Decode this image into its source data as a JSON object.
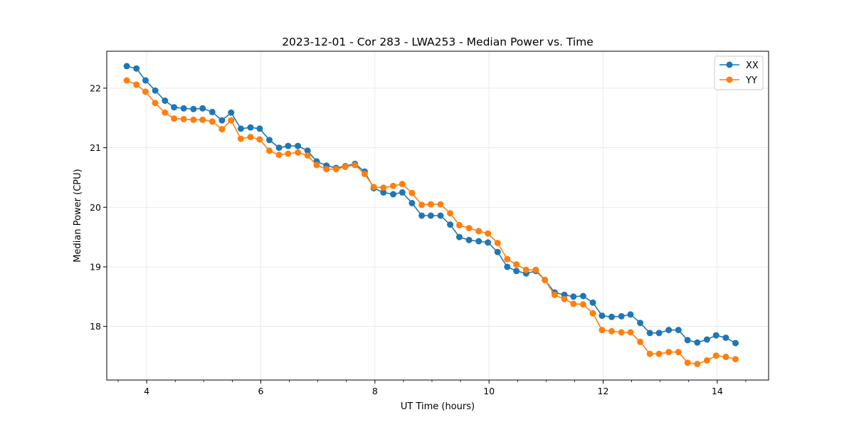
{
  "chart_data": {
    "type": "line",
    "title": "2023-12-01 - Cor 283 - LWA253 - Median Power vs. Time",
    "xlabel": "UT Time (hours)",
    "ylabel": "Median Power (CPU)",
    "xlim": [
      3.3,
      14.9
    ],
    "ylim": [
      17.1,
      22.62
    ],
    "xticks": [
      4,
      6,
      8,
      10,
      12,
      14
    ],
    "xticks_minor": [
      3.5,
      4.5,
      5.0,
      5.5,
      6.5,
      7.0,
      7.5,
      8.5,
      9.0,
      9.5,
      10.5,
      11.0,
      11.5,
      12.5,
      13.0,
      13.5,
      14.5
    ],
    "yticks": [
      18,
      19,
      20,
      21,
      22
    ],
    "grid": true,
    "legend_position": "top-right",
    "x": [
      3.65,
      3.82,
      3.98,
      4.15,
      4.32,
      4.48,
      4.65,
      4.82,
      4.98,
      5.15,
      5.32,
      5.48,
      5.65,
      5.82,
      5.98,
      6.15,
      6.32,
      6.48,
      6.65,
      6.82,
      6.98,
      7.15,
      7.32,
      7.48,
      7.65,
      7.82,
      7.98,
      8.15,
      8.32,
      8.48,
      8.65,
      8.82,
      8.98,
      9.15,
      9.32,
      9.48,
      9.65,
      9.82,
      9.98,
      10.15,
      10.32,
      10.48,
      10.65,
      10.82,
      10.98,
      11.15,
      11.32,
      11.48,
      11.65,
      11.82,
      11.98,
      12.15,
      12.32,
      12.48,
      12.65,
      12.82,
      12.98,
      13.15,
      13.32,
      13.48,
      13.65,
      13.82,
      13.98,
      14.15,
      14.32
    ],
    "series": [
      {
        "name": "XX",
        "color": "#1f77b4",
        "values": [
          22.37,
          22.33,
          22.13,
          21.96,
          21.79,
          21.68,
          21.66,
          21.65,
          21.66,
          21.6,
          21.46,
          21.59,
          21.32,
          21.34,
          21.32,
          21.13,
          21.0,
          21.03,
          21.03,
          20.95,
          20.77,
          20.7,
          20.66,
          20.69,
          20.73,
          20.6,
          20.32,
          20.25,
          20.22,
          20.25,
          20.07,
          19.86,
          19.86,
          19.86,
          19.71,
          19.5,
          19.45,
          19.43,
          19.41,
          19.25,
          19.0,
          18.93,
          18.89,
          18.93,
          18.78,
          18.57,
          18.53,
          18.5,
          18.51,
          18.4,
          18.18,
          18.16,
          18.17,
          18.2,
          18.06,
          17.89,
          17.89,
          17.94,
          17.94,
          17.77,
          17.73,
          17.78,
          17.85,
          17.81,
          17.72
        ]
      },
      {
        "name": "YY",
        "color": "#ff7f0e",
        "values": [
          22.13,
          22.06,
          21.94,
          21.75,
          21.59,
          21.49,
          21.48,
          21.47,
          21.47,
          21.44,
          21.31,
          21.46,
          21.15,
          21.18,
          21.14,
          20.95,
          20.88,
          20.9,
          20.92,
          20.87,
          20.71,
          20.64,
          20.64,
          20.68,
          20.71,
          20.56,
          20.34,
          20.33,
          20.36,
          20.39,
          20.24,
          20.04,
          20.05,
          20.05,
          19.9,
          19.7,
          19.65,
          19.6,
          19.56,
          19.4,
          19.13,
          19.04,
          18.95,
          18.95,
          18.78,
          18.53,
          18.46,
          18.38,
          18.37,
          18.22,
          17.94,
          17.92,
          17.9,
          17.9,
          17.74,
          17.54,
          17.54,
          17.57,
          17.57,
          17.39,
          17.37,
          17.43,
          17.51,
          17.49,
          17.45
        ]
      }
    ]
  }
}
